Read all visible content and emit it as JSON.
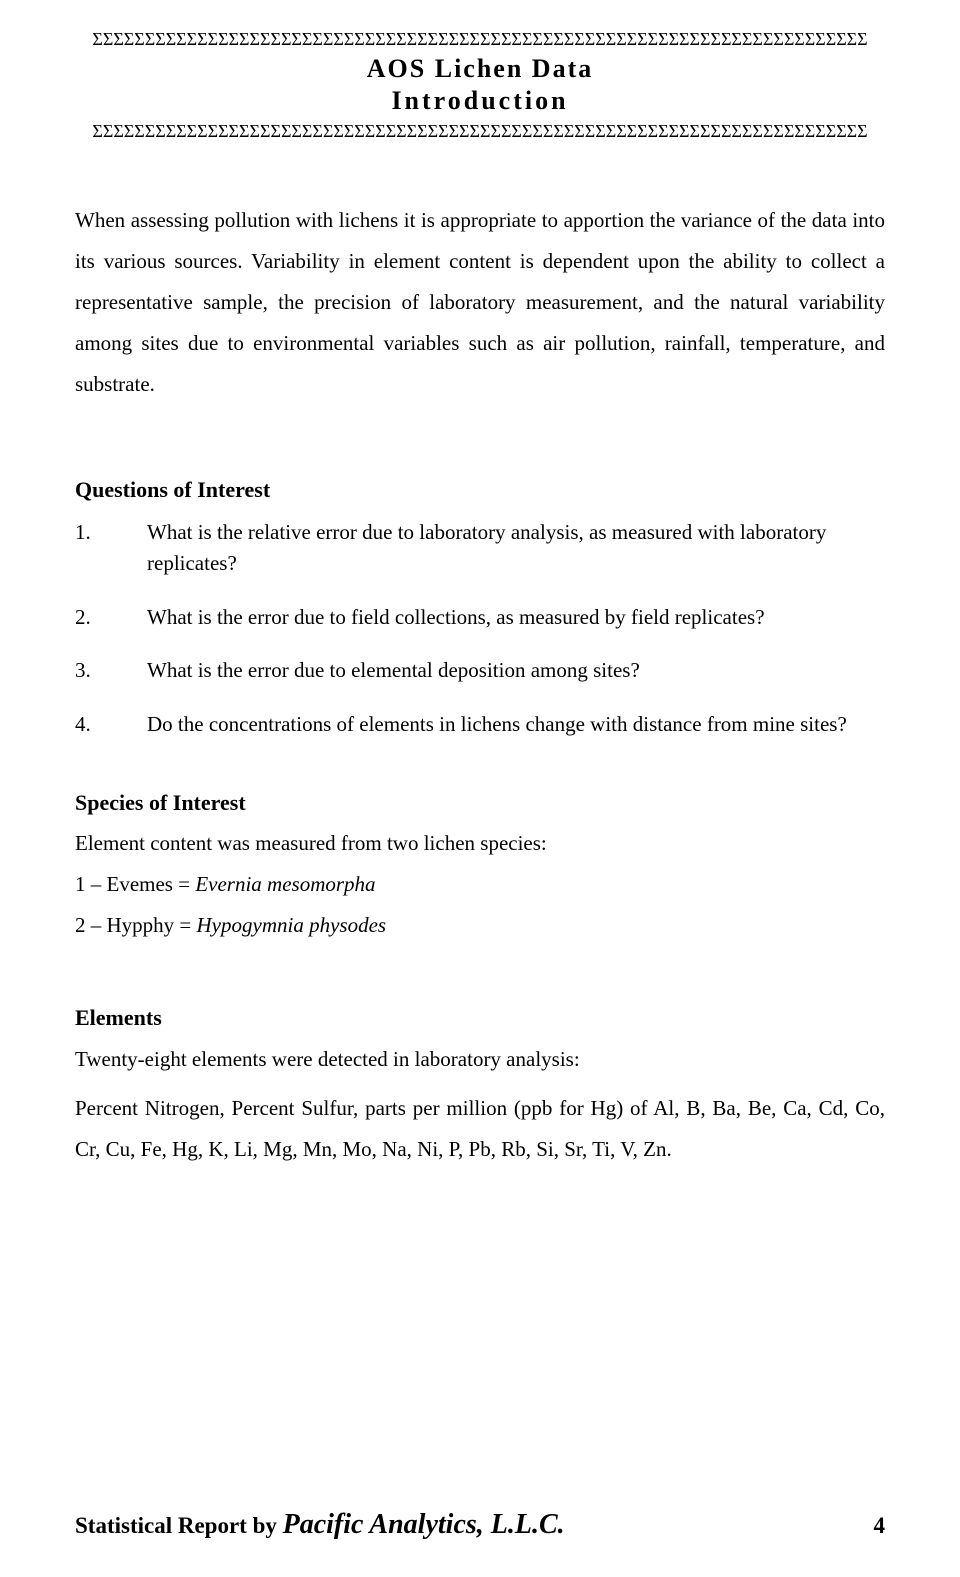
{
  "header": {
    "sigma_row": "ΣΣΣΣΣΣΣΣΣΣΣΣΣΣΣΣΣΣΣΣΣΣΣΣΣΣΣΣΣΣΣΣΣΣΣΣΣΣΣΣΣΣΣΣΣΣΣΣΣΣΣΣΣΣΣΣΣΣΣΣΣΣΣΣΣΣΣΣΣΣΣΣΣΣ",
    "title": "AOS Lichen Data",
    "subtitle": "Introduction"
  },
  "intro": "When assessing pollution with lichens it is appropriate to apportion the variance of the data into its various sources. Variability in element content is dependent upon the ability to collect a representative sample, the precision of laboratory measurement, and the natural variability among sites due to environmental variables such as air pollution, rainfall, temperature, and substrate.",
  "questions": {
    "heading": "Questions of Interest",
    "items": [
      {
        "num": "1.",
        "text": "What is the relative error due to laboratory analysis, as measured with laboratory replicates?"
      },
      {
        "num": "2.",
        "text": "What is the error due to field collections, as measured by field replicates?"
      },
      {
        "num": "3.",
        "text": "What is the error due to elemental deposition among sites?"
      },
      {
        "num": "4.",
        "text": "Do the concentrations of elements in lichens change with distance from mine sites?"
      }
    ]
  },
  "species": {
    "heading": "Species of Interest",
    "intro": "Element content was measured from two lichen species:",
    "s1_prefix": "1 – Evemes = ",
    "s1_italic": "Evernia mesomorpha",
    "s2_prefix": "2 – Hypphy = ",
    "s2_italic": "Hypogymnia physodes"
  },
  "elements": {
    "heading": "Elements",
    "line1": "Twenty-eight elements were detected in laboratory analysis:",
    "line2": "Percent Nitrogen, Percent Sulfur, parts per million (ppb for Hg) of Al, B, Ba, Be, Ca, Cd, Co, Cr, Cu, Fe, Hg, K, Li, Mg, Mn, Mo, Na, Ni, P, Pb, Rb, Si, Sr, Ti, V, Zn."
  },
  "footer": {
    "label": "Statistical Report by ",
    "script": "Pacific Analytics, L.L.C.",
    "page": "4"
  }
}
